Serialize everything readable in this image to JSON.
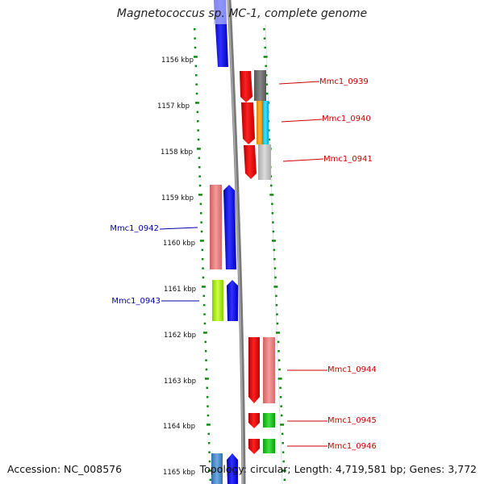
{
  "title": "Magnetococcus sp. MC-1, complete genome",
  "accession": "Accession: NC_008576",
  "summary": "Topology: circular; Length: 4,719,581 bp; Genes: 3,772",
  "position_labels": [
    "1156 kbp",
    "1157 kbp",
    "1158 kbp",
    "1159 kbp",
    "1160 kbp",
    "1161 kbp",
    "1162 kbp",
    "1163 kbp",
    "1164 kbp",
    "1165 kbp"
  ],
  "colors": {
    "forward": "#e00000",
    "reverse": "#1010ee",
    "ticks": "#118811",
    "backbone": "#808080",
    "label_right": "#cc0000",
    "label_left": "#0000aa"
  },
  "right_labels": [
    "Mmc1_0939",
    "Mmc1_0940",
    "Mmc1_0941",
    "Mmc1_0944",
    "Mmc1_0945",
    "Mmc1_0946"
  ],
  "left_labels": [
    "Mmc1_0942",
    "Mmc1_0943"
  ]
}
